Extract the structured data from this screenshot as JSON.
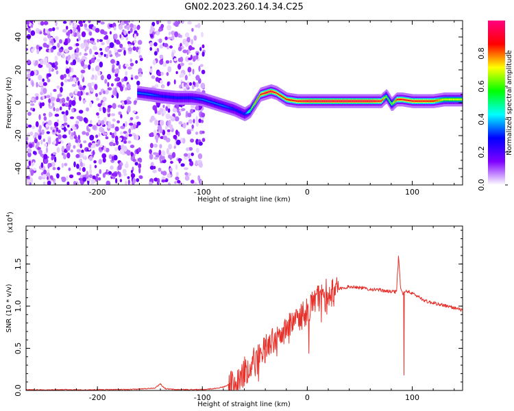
{
  "title": "GN02.2023.260.14.34.C25",
  "chart_data": [
    {
      "type": "heatmap",
      "xlabel": "Height of straight line (km)",
      "ylabel": "Frequency (Hz)",
      "xlim": [
        -268,
        148
      ],
      "ylim": [
        -50,
        50
      ],
      "xticks": [
        -200,
        -100,
        0,
        100
      ],
      "yticks": [
        -40,
        -20,
        0,
        20,
        40
      ],
      "colorbar": {
        "label": "Normalized spectral amplitude",
        "range": [
          0,
          1
        ],
        "ticks": [
          "0.0",
          "0.2",
          "0.4",
          "0.6",
          "0.8"
        ],
        "tick_values": [
          0.0,
          0.2,
          0.4,
          0.6,
          0.8
        ],
        "colormap": [
          "#ffffff",
          "#7f00ff",
          "#0000ff",
          "#00ffff",
          "#00ff00",
          "#ffff00",
          "#ff0000",
          "#ff0080"
        ]
      },
      "signal_track": {
        "x": [
          -162,
          -150,
          -140,
          -125,
          -110,
          -100,
          -90,
          -80,
          -70,
          -60,
          -55,
          -50,
          -45,
          -40,
          -35,
          -30,
          -25,
          -20,
          -10,
          0,
          20,
          40,
          60,
          70,
          75,
          80,
          85,
          90,
          100,
          110,
          120,
          130,
          148
        ],
        "y": [
          6,
          5,
          4,
          3,
          3,
          2,
          0,
          -2,
          -4,
          -7,
          -5,
          0,
          5,
          6,
          7,
          6,
          4,
          2,
          1,
          1,
          1,
          1,
          1,
          1,
          4,
          -1,
          2,
          2,
          1,
          1,
          1,
          2,
          2
        ],
        "peak_amplitude": [
          0.35,
          0.35,
          0.3,
          0.3,
          0.3,
          0.35,
          0.35,
          0.35,
          0.3,
          0.3,
          0.55,
          0.75,
          0.85,
          0.95,
          0.95,
          0.9,
          0.85,
          0.85,
          0.9,
          0.95,
          0.95,
          0.95,
          0.95,
          0.9,
          0.6,
          0.6,
          0.85,
          0.9,
          0.9,
          0.9,
          0.85,
          0.7,
          0.7
        ]
      },
      "noise_bands_x": [
        [
          -268,
          -158
        ],
        [
          -150,
          -98
        ]
      ]
    },
    {
      "type": "line",
      "xlabel": "Height of straight line (km)",
      "ylabel": "SNR (10 * v/v)",
      "y_multiplier": "(x10",
      "y_multiplier_exp": "4",
      "y_multiplier_close": ")",
      "xlim": [
        -268,
        148
      ],
      "ylim": [
        0,
        1.95
      ],
      "xticks": [
        -200,
        -100,
        0,
        100
      ],
      "yticks": [
        "0.0",
        "0.5",
        "1.0",
        "1.5"
      ],
      "ytick_values": [
        0,
        0.5,
        1.0,
        1.5
      ],
      "series": [
        {
          "color": "#e8302a",
          "x": [
            -268,
            -250,
            -230,
            -210,
            -190,
            -170,
            -155,
            -145,
            -140,
            -138,
            -135,
            -125,
            -110,
            -100,
            -90,
            -80,
            -70,
            -65,
            -60,
            -55,
            -50,
            -45,
            -40,
            -35,
            -30,
            -25,
            -20,
            -15,
            -10,
            -5,
            0,
            5,
            10,
            15,
            20,
            25,
            30,
            35,
            40,
            45,
            50,
            60,
            70,
            75,
            80,
            85,
            87,
            89,
            91,
            95,
            100,
            105,
            110,
            115,
            120,
            130,
            140,
            148
          ],
          "y": [
            0.01,
            0.005,
            0.01,
            0.005,
            0.01,
            0.01,
            0.02,
            0.03,
            0.08,
            0.05,
            0.02,
            0.01,
            0.01,
            0.01,
            0.02,
            0.04,
            0.1,
            0.16,
            0.22,
            0.3,
            0.36,
            0.42,
            0.5,
            0.56,
            0.6,
            0.66,
            0.72,
            0.78,
            0.84,
            0.9,
            0.96,
            1.02,
            1.06,
            1.1,
            1.15,
            1.18,
            1.2,
            1.22,
            1.23,
            1.23,
            1.22,
            1.2,
            1.19,
            1.18,
            1.17,
            1.17,
            1.6,
            1.2,
            1.15,
            1.18,
            1.15,
            1.12,
            1.08,
            1.05,
            1.04,
            1.01,
            0.98,
            0.95
          ]
        }
      ]
    }
  ]
}
